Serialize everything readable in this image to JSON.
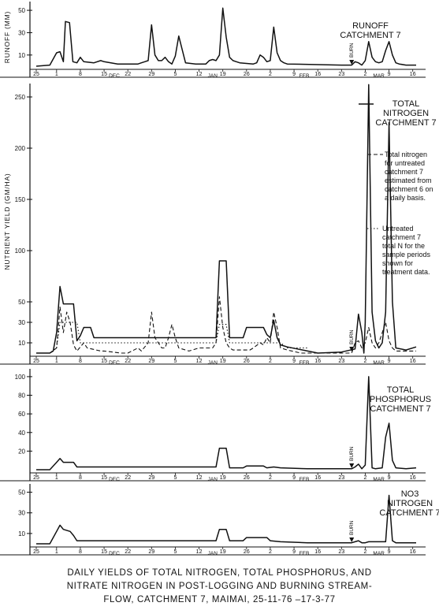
{
  "caption": {
    "line1": "DAILY YIELDS OF TOTAL NITROGEN, TOTAL PHOSPHORUS, AND",
    "line2": "NITRATE NITROGEN IN POST-LOGGING AND BURNING STREAM-",
    "line3": "FLOW, CATCHMENT 7, MAIMAI, 25-11-76 –17-3-77"
  },
  "x_ticks": [
    {
      "t": 0,
      "label": "25"
    },
    {
      "t": 6,
      "label": "1"
    },
    {
      "t": 13,
      "label": "8"
    },
    {
      "t": 20,
      "label": "15"
    },
    {
      "t": 27,
      "label": "22"
    },
    {
      "t": 34,
      "label": "29"
    },
    {
      "t": 41,
      "label": "5"
    },
    {
      "t": 48,
      "label": "12"
    },
    {
      "t": 55,
      "label": "19"
    },
    {
      "t": 62,
      "label": "26"
    },
    {
      "t": 69,
      "label": "2"
    },
    {
      "t": 76,
      "label": "9"
    },
    {
      "t": 83,
      "label": "16"
    },
    {
      "t": 90,
      "label": "23"
    },
    {
      "t": 97,
      "label": "2"
    },
    {
      "t": 104,
      "label": "9"
    },
    {
      "t": 111,
      "label": "16"
    }
  ],
  "month_labels": [
    {
      "t": 23,
      "label": "DEC"
    },
    {
      "t": 52,
      "label": "JAN"
    },
    {
      "t": 79,
      "label": "FEB"
    },
    {
      "t": 101,
      "label": "MAR"
    }
  ],
  "burn_label": "BURN",
  "chart_data": [
    {
      "type": "line",
      "id": "runoff",
      "title": "RUNOFF\nCATCHMENT 7",
      "ylabel": "RUNOFF (MM)",
      "ylim": [
        0,
        55
      ],
      "yticks": [
        10,
        30,
        50
      ],
      "xlim": [
        0,
        112
      ],
      "series": [
        {
          "values": [
            [
              0,
              0
            ],
            [
              4,
              1
            ],
            [
              6,
              12
            ],
            [
              7,
              13
            ],
            [
              8,
              4
            ],
            [
              8.6,
              40
            ],
            [
              9.8,
              39
            ],
            [
              10.8,
              4
            ],
            [
              12,
              3
            ],
            [
              13,
              8
            ],
            [
              14,
              4
            ],
            [
              17,
              3
            ],
            [
              19,
              5
            ],
            [
              20,
              4
            ],
            [
              24,
              2
            ],
            [
              30,
              2
            ],
            [
              31,
              3
            ],
            [
              32,
              4
            ],
            [
              33,
              5
            ],
            [
              34,
              37
            ],
            [
              35,
              10
            ],
            [
              36,
              5
            ],
            [
              37,
              5
            ],
            [
              38,
              8
            ],
            [
              39,
              4
            ],
            [
              40,
              2
            ],
            [
              41,
              9
            ],
            [
              42,
              27
            ],
            [
              43,
              15
            ],
            [
              44,
              3
            ],
            [
              47,
              2
            ],
            [
              50,
              2
            ],
            [
              51,
              5
            ],
            [
              52,
              6
            ],
            [
              53,
              5
            ],
            [
              54,
              10
            ],
            [
              55,
              52
            ],
            [
              56,
              26
            ],
            [
              57,
              8
            ],
            [
              58,
              5
            ],
            [
              59,
              4
            ],
            [
              60,
              3
            ],
            [
              64,
              2
            ],
            [
              65,
              3
            ],
            [
              66,
              10
            ],
            [
              67,
              8
            ],
            [
              68,
              4
            ],
            [
              69,
              5
            ],
            [
              70,
              35
            ],
            [
              71,
              12
            ],
            [
              72,
              5
            ],
            [
              73,
              3
            ],
            [
              74,
              2
            ],
            [
              90,
              1
            ],
            [
              93,
              1
            ],
            [
              94,
              4
            ],
            [
              95,
              3
            ],
            [
              96,
              1
            ],
            [
              97,
              5
            ],
            [
              98,
              22
            ],
            [
              99,
              8
            ],
            [
              100,
              4
            ],
            [
              101,
              3
            ],
            [
              102,
              4
            ],
            [
              103,
              14
            ],
            [
              104,
              22
            ],
            [
              105,
              10
            ],
            [
              106,
              3
            ],
            [
              107,
              2
            ],
            [
              109,
              1
            ],
            [
              112,
              1
            ]
          ]
        }
      ]
    },
    {
      "type": "line",
      "id": "total_nitrogen",
      "title": "TOTAL\nNITROGEN\nCATCHMENT 7",
      "ylabel": "NUTRIENT  YIELD  (GM/HA)",
      "ylim": [
        0,
        260
      ],
      "yticks": [
        10,
        30,
        50,
        100,
        150,
        200,
        250
      ],
      "xlim": [
        0,
        112
      ],
      "series": [
        {
          "name": "TOTAL NITROGEN CATCHMENT 7",
          "values": [
            [
              0,
              0
            ],
            [
              4,
              0
            ],
            [
              5,
              2
            ],
            [
              6,
              20
            ],
            [
              7,
              65
            ],
            [
              8,
              48
            ],
            [
              11,
              48
            ],
            [
              12,
              12
            ],
            [
              13,
              17
            ],
            [
              14,
              25
            ],
            [
              16,
              25
            ],
            [
              17,
              15
            ],
            [
              53,
              15
            ],
            [
              54,
              90
            ],
            [
              56,
              90
            ],
            [
              57,
              15
            ],
            [
              61,
              15
            ],
            [
              62,
              25
            ],
            [
              67,
              25
            ],
            [
              68,
              18
            ],
            [
              69,
              15
            ],
            [
              70,
              32
            ],
            [
              71,
              15
            ],
            [
              72,
              8
            ],
            [
              74,
              6
            ],
            [
              77,
              4
            ],
            [
              80,
              2
            ],
            [
              83,
              0
            ],
            [
              90,
              1
            ],
            [
              94,
              4
            ],
            [
              95,
              38
            ],
            [
              96,
              20
            ],
            [
              96.6,
              0
            ],
            [
              97,
              30
            ],
            [
              98,
              262
            ],
            [
              99,
              40
            ],
            [
              100,
              12
            ],
            [
              101,
              5
            ],
            [
              102,
              10
            ],
            [
              103,
              40
            ],
            [
              104,
              225
            ],
            [
              105,
              50
            ],
            [
              106,
              5
            ],
            [
              109,
              3
            ],
            [
              112,
              6
            ]
          ]
        },
        {
          "name": "Total nitrogen for untreated catchment 7 estimated from catchment 6 on a daily basis.",
          "values": [
            [
              0,
              0
            ],
            [
              4,
              0
            ],
            [
              6,
              5
            ],
            [
              7,
              45
            ],
            [
              8,
              20
            ],
            [
              9,
              40
            ],
            [
              10,
              30
            ],
            [
              11,
              8
            ],
            [
              12,
              2
            ],
            [
              13,
              6
            ],
            [
              14,
              10
            ],
            [
              15,
              5
            ],
            [
              19,
              2
            ],
            [
              20,
              2
            ],
            [
              25,
              0
            ],
            [
              27,
              0
            ],
            [
              30,
              5
            ],
            [
              31,
              2
            ],
            [
              33,
              10
            ],
            [
              34,
              40
            ],
            [
              35,
              15
            ],
            [
              36,
              10
            ],
            [
              37,
              5
            ],
            [
              38,
              5
            ],
            [
              39,
              15
            ],
            [
              40,
              28
            ],
            [
              41,
              15
            ],
            [
              42,
              5
            ],
            [
              45,
              2
            ],
            [
              48,
              5
            ],
            [
              52,
              5
            ],
            [
              53,
              10
            ],
            [
              54,
              55
            ],
            [
              55,
              25
            ],
            [
              56,
              10
            ],
            [
              57,
              5
            ],
            [
              58,
              3
            ],
            [
              63,
              3
            ],
            [
              64,
              5
            ],
            [
              66,
              10
            ],
            [
              67,
              8
            ],
            [
              68,
              15
            ],
            [
              69,
              10
            ],
            [
              70,
              40
            ],
            [
              71,
              25
            ],
            [
              72,
              5
            ],
            [
              74,
              3
            ],
            [
              78,
              0
            ],
            [
              93,
              0
            ],
            [
              94,
              10
            ],
            [
              95,
              12
            ],
            [
              96,
              5
            ],
            [
              97,
              10
            ],
            [
              98,
              25
            ],
            [
              99,
              10
            ],
            [
              100,
              5
            ],
            [
              101,
              10
            ],
            [
              102,
              20
            ],
            [
              103,
              30
            ],
            [
              104,
              12
            ],
            [
              105,
              5
            ],
            [
              106,
              2
            ],
            [
              112,
              2
            ]
          ]
        },
        {
          "name": "Untreated catchment 7 total N for the sample periods shown for treatment data.",
          "values": [
            [
              0,
              0
            ],
            [
              4,
              0
            ],
            [
              6,
              5
            ],
            [
              7,
              30
            ],
            [
              12,
              30
            ],
            [
              13,
              10
            ],
            [
              53,
              10
            ],
            [
              54,
              28
            ],
            [
              56,
              28
            ],
            [
              57,
              10
            ],
            [
              72,
              10
            ],
            [
              74,
              5
            ],
            [
              80,
              5
            ]
          ]
        }
      ]
    },
    {
      "type": "line",
      "id": "total_phosphorus",
      "title": "TOTAL\nPHOSPHORUS\nCATCHMENT 7",
      "ylim": [
        0,
        105
      ],
      "yticks": [
        20,
        40,
        60,
        80,
        100
      ],
      "xlim": [
        0,
        112
      ],
      "series": [
        {
          "values": [
            [
              0,
              0
            ],
            [
              4,
              0
            ],
            [
              6,
              8
            ],
            [
              7,
              12
            ],
            [
              8,
              8
            ],
            [
              11,
              8
            ],
            [
              12,
              3
            ],
            [
              53,
              3
            ],
            [
              54,
              23
            ],
            [
              56,
              23
            ],
            [
              57,
              2
            ],
            [
              61,
              2
            ],
            [
              62,
              4
            ],
            [
              67,
              4
            ],
            [
              68,
              2
            ],
            [
              70,
              3
            ],
            [
              72,
              2
            ],
            [
              80,
              1
            ],
            [
              90,
              1
            ],
            [
              93,
              1
            ],
            [
              94,
              3
            ],
            [
              95,
              6
            ],
            [
              96,
              1
            ],
            [
              97,
              5
            ],
            [
              98,
              100
            ],
            [
              99,
              2
            ],
            [
              100,
              1
            ],
            [
              102,
              2
            ],
            [
              103,
              35
            ],
            [
              104,
              50
            ],
            [
              105,
              10
            ],
            [
              106,
              2
            ],
            [
              109,
              1
            ],
            [
              112,
              2
            ]
          ]
        }
      ]
    },
    {
      "type": "line",
      "id": "nitrate_nitrogen",
      "title": "NO3\nNITROGEN\nCATCHMENT 7",
      "ylim": [
        0,
        55
      ],
      "yticks": [
        10,
        30,
        50
      ],
      "xlim": [
        0,
        112
      ],
      "series": [
        {
          "values": [
            [
              0,
              0
            ],
            [
              4,
              0
            ],
            [
              6,
              12
            ],
            [
              7,
              18
            ],
            [
              8,
              14
            ],
            [
              10,
              12
            ],
            [
              11,
              8
            ],
            [
              12,
              3
            ],
            [
              53,
              3
            ],
            [
              54,
              14
            ],
            [
              56,
              14
            ],
            [
              57,
              3
            ],
            [
              61,
              3
            ],
            [
              62,
              6
            ],
            [
              68,
              6
            ],
            [
              69,
              3
            ],
            [
              72,
              2
            ],
            [
              80,
              1
            ],
            [
              90,
              1
            ],
            [
              93,
              1
            ],
            [
              94,
              2
            ],
            [
              95,
              3
            ],
            [
              96,
              1
            ],
            [
              97,
              1
            ],
            [
              98,
              2
            ],
            [
              103,
              2
            ],
            [
              104,
              47
            ],
            [
              105,
              3
            ],
            [
              106,
              1
            ],
            [
              112,
              1
            ]
          ]
        }
      ]
    }
  ],
  "legend": {
    "solid": "TOTAL\nNITROGEN\nCATCHMENT 7",
    "dashed": "Total nitrogen\nfor untreated\ncatchment 7\nestimated from\ncatchment 6 on\na daily basis.",
    "dotted": "Untreated\ncatchment 7\ntotal N for the\nsample periods\nshown for\ntreatment data."
  },
  "colors": {
    "ink": "#111111",
    "paper": "#ffffff"
  }
}
